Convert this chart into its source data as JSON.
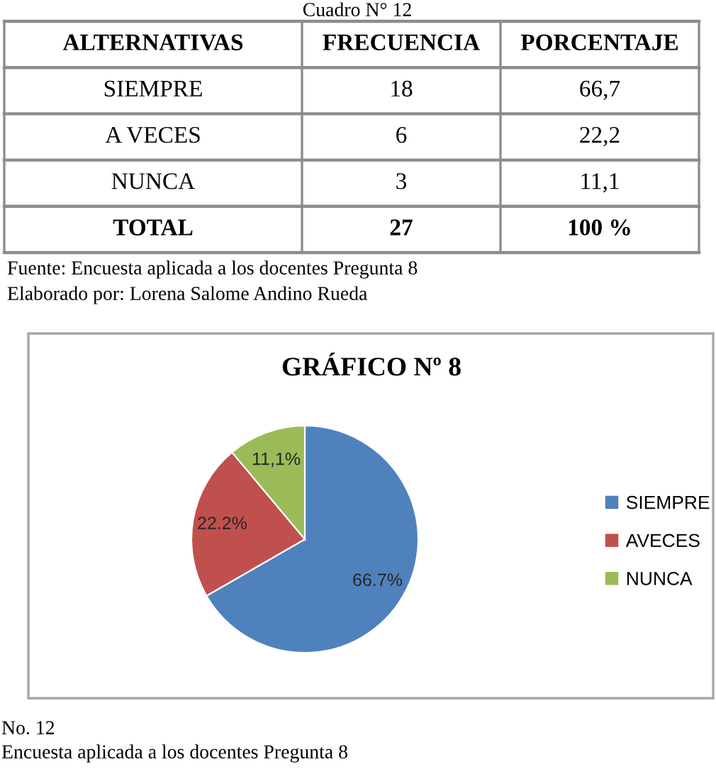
{
  "chart_data": {
    "type": "pie",
    "title": "GRÁFICO Nº 8",
    "categories": [
      "SIEMPRE",
      "AVECES",
      "NUNCA"
    ],
    "values": [
      66.7,
      22.2,
      11.1
    ],
    "colors": [
      "#4f81bd",
      "#c0504d",
      "#9bbb59"
    ],
    "value_labels": [
      "66.7%",
      "22.2%",
      "11,1%"
    ],
    "legend": "right",
    "annotations": [
      "Cuadro N° 12",
      "ALTERNATIVAS",
      "FRECUENCIA",
      "PORCENTAJE",
      "SIEMPRE",
      "18",
      "66,7",
      "A VECES",
      "6",
      "22,2",
      "NUNCA",
      "3",
      "11,1",
      "TOTAL",
      "27",
      "100 %",
      "Fuente: Encuesta aplicada a los docentes Pregunta 8",
      "Elaborado por: Lorena Salome Andino Rueda",
      "No. 12",
      "Encuesta aplicada a los docentes Pregunta 8"
    ]
  }
}
